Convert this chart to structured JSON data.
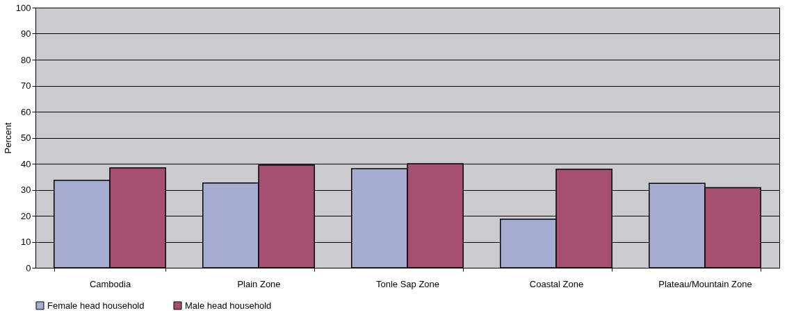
{
  "chart_data": {
    "type": "bar",
    "ylabel": "Percent",
    "categories": [
      "Cambodia",
      "Plain Zone",
      "Tonle Sap Zone",
      "Coastal Zone",
      "Plateau/Mountain Zone"
    ],
    "series": [
      {
        "name": "Female head household",
        "color": "#a7acd3",
        "values": [
          33.6,
          32.6,
          38.1,
          18.7,
          32.5
        ]
      },
      {
        "name": "Male head household",
        "color": "#a64f70",
        "values": [
          38.4,
          39.5,
          40,
          37.9,
          30.8
        ]
      }
    ],
    "ylim": [
      0,
      100
    ],
    "yticks": [
      0,
      10,
      20,
      30,
      40,
      50,
      60,
      70,
      80,
      90,
      100
    ],
    "grid": "y",
    "legend": "bottom"
  }
}
